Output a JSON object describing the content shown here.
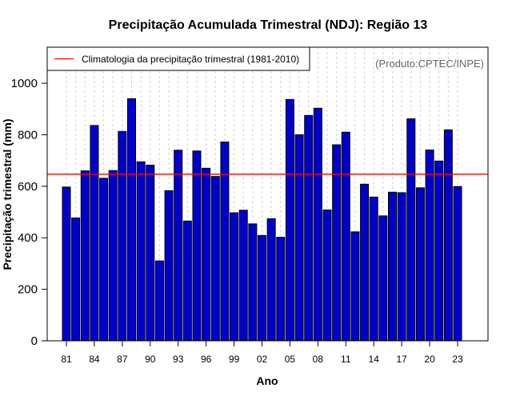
{
  "chart_data": {
    "type": "bar",
    "title": "Precipitação Acumulada Trimestral (NDJ): Região 13",
    "xlabel": "Ano",
    "ylabel": "Precipitação trimestral (mm)",
    "source_note": "(Produto:CPTEC/INPE)",
    "legend": {
      "label": "Climatologia da precipitação trimestral (1981-2010)",
      "placement": "top-left"
    },
    "climatology": 647,
    "ylim": [
      0,
      1140
    ],
    "yticks": [
      0,
      200,
      400,
      600,
      800,
      1000
    ],
    "xtick_labels": [
      "81",
      "84",
      "87",
      "90",
      "93",
      "96",
      "99",
      "02",
      "05",
      "08",
      "11",
      "14",
      "17",
      "20",
      "23"
    ],
    "xtick_years": [
      1981,
      1984,
      1987,
      1990,
      1993,
      1996,
      1999,
      2002,
      2005,
      2008,
      2011,
      2014,
      2017,
      2020,
      2023
    ],
    "grid": "vertical dashed",
    "years": [
      1981,
      1982,
      1983,
      1984,
      1985,
      1986,
      1987,
      1988,
      1989,
      1990,
      1991,
      1992,
      1993,
      1994,
      1995,
      1996,
      1997,
      1998,
      1999,
      2000,
      2001,
      2002,
      2003,
      2004,
      2005,
      2006,
      2007,
      2008,
      2009,
      2010,
      2011,
      2012,
      2013,
      2014,
      2015,
      2016,
      2017,
      2018,
      2019,
      2020,
      2021,
      2022,
      2023
    ],
    "values": [
      597,
      477,
      660,
      836,
      631,
      661,
      813,
      940,
      695,
      682,
      310,
      583,
      740,
      465,
      737,
      670,
      638,
      772,
      497,
      507,
      454,
      409,
      474,
      402,
      937,
      800,
      875,
      903,
      508,
      761,
      810,
      423,
      608,
      558,
      485,
      577,
      575,
      862,
      594,
      741,
      698,
      819,
      599
    ],
    "colors": {
      "bar": "#0000CD",
      "climatology": "#FF0000",
      "grid": "#D3D3D3"
    }
  }
}
